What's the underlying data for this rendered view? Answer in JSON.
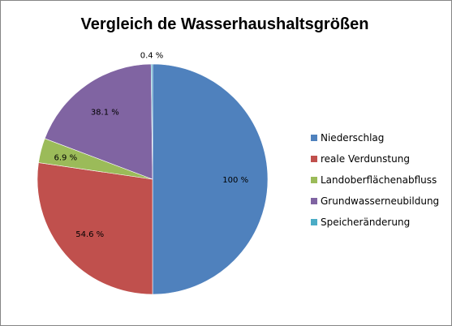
{
  "chart_data": {
    "type": "pie",
    "title": "Vergleich de Wasserhaushaltsgrößen",
    "categories": [
      "Niederschlag",
      "reale Verdunstung",
      "Landoberflächenabfluss",
      "Grundwasserneubildung",
      "Speicheränderung"
    ],
    "values": [
      100,
      54.6,
      6.9,
      38.1,
      0.4
    ],
    "data_labels": [
      "100 %",
      "54.6 %",
      "6.9 %",
      "38.1 %",
      "0.4 %"
    ],
    "colors": [
      "#4F81BD",
      "#C0504D",
      "#9BBB59",
      "#8064A2",
      "#4BACC6"
    ],
    "legend_position": "right"
  }
}
